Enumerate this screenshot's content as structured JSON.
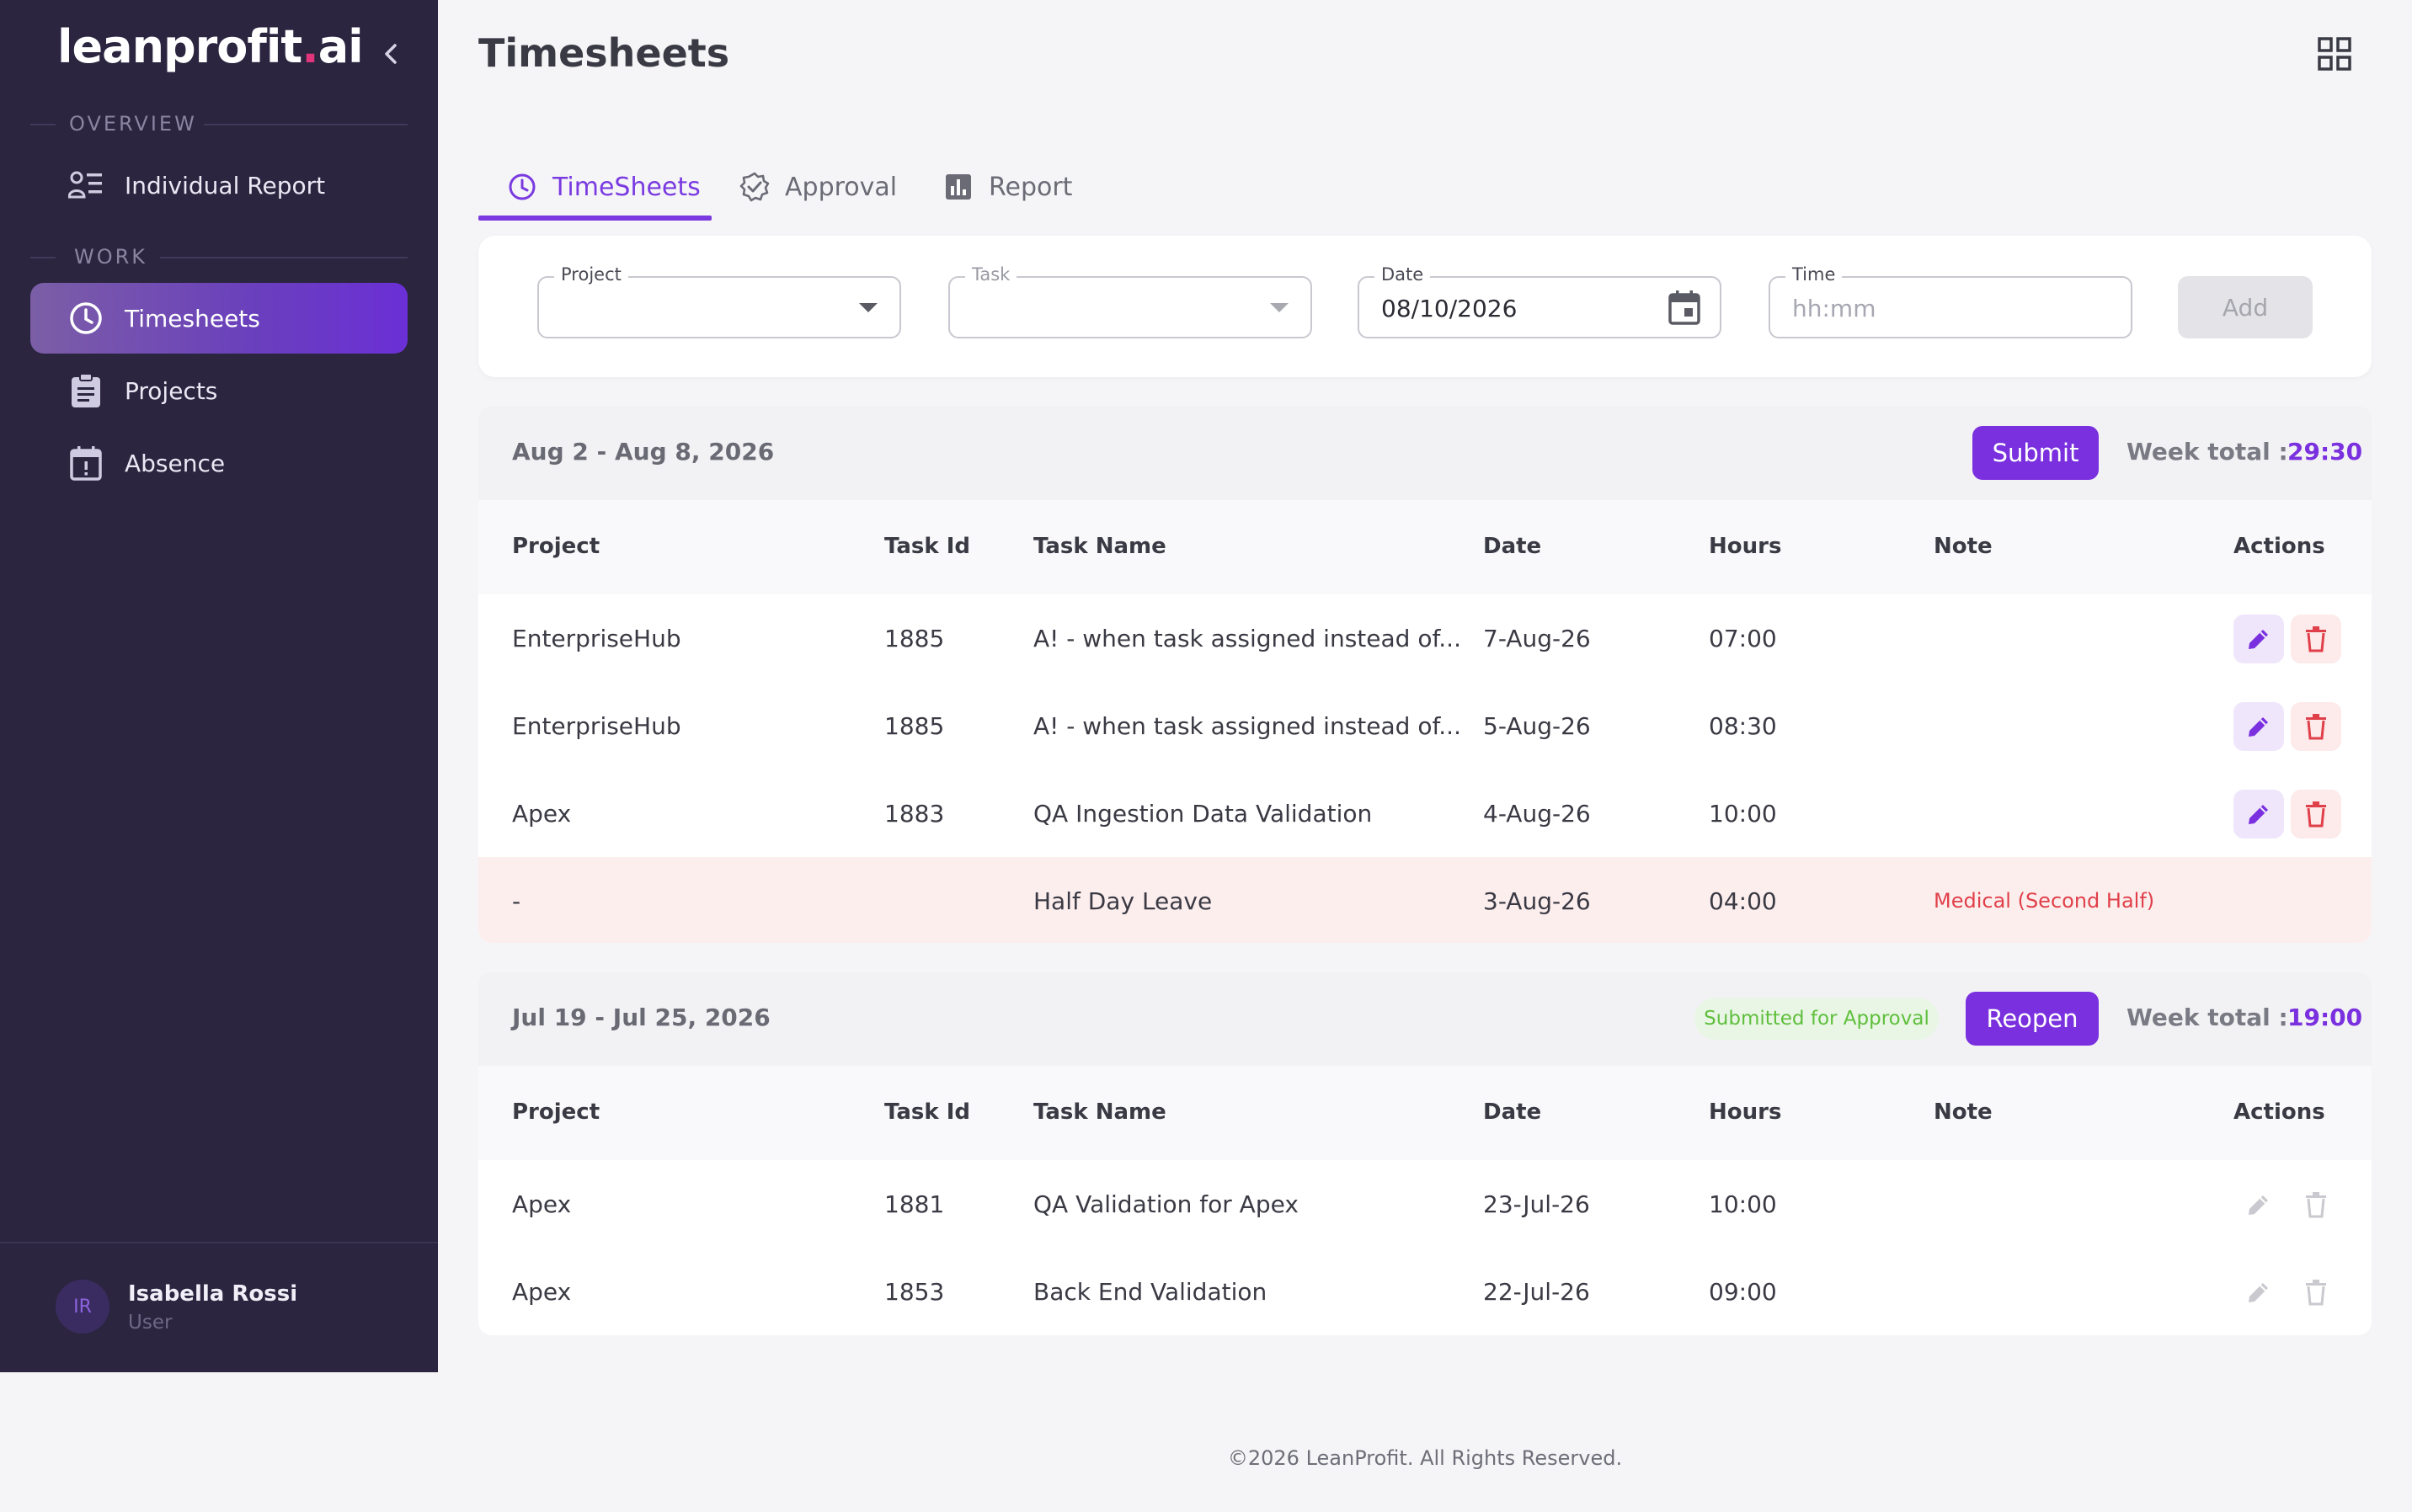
{
  "app": {
    "logo_main": "leanprofit",
    "logo_dot": ".",
    "logo_tail": "ai"
  },
  "sidebar": {
    "overview_label": "OVERVIEW",
    "work_label": "WORK",
    "items": [
      {
        "label": "Individual Report",
        "icon": "report-person-icon"
      },
      {
        "label": "Timesheets",
        "icon": "clock-icon",
        "active": true
      },
      {
        "label": "Projects",
        "icon": "clipboard-icon"
      },
      {
        "label": "Absence",
        "icon": "calendar-alert-icon"
      }
    ],
    "user": {
      "initials": "IR",
      "name": "Isabella Rossi",
      "role": "User"
    }
  },
  "header": {
    "title": "Timesheets"
  },
  "tabs": [
    {
      "label": "TimeSheets",
      "icon": "clock-icon",
      "active": true
    },
    {
      "label": "Approval",
      "icon": "verified-badge-icon"
    },
    {
      "label": "Report",
      "icon": "bar-chart-icon"
    }
  ],
  "entry_form": {
    "project": {
      "label": "Project",
      "value": ""
    },
    "task": {
      "label": "Task",
      "value": ""
    },
    "date": {
      "label": "Date",
      "value": "08/10/2026"
    },
    "time": {
      "label": "Time",
      "placeholder": "hh:mm"
    },
    "add_label": "Add"
  },
  "columns": [
    "Project",
    "Task Id",
    "Task Name",
    "Date",
    "Hours",
    "Note",
    "Actions"
  ],
  "weeks": [
    {
      "range": "Aug 2 - Aug 8, 2026",
      "action_label": "Submit",
      "week_total_label": "Week total :",
      "week_total": "29:30",
      "rows": [
        {
          "project": "EnterpriseHub",
          "task_id": "1885",
          "task_name": "A! - when task assigned instead of...",
          "date": "7-Aug-26",
          "hours": "07:00",
          "note": ""
        },
        {
          "project": "EnterpriseHub",
          "task_id": "1885",
          "task_name": "A! - when task assigned instead of...",
          "date": "5-Aug-26",
          "hours": "08:30",
          "note": ""
        },
        {
          "project": "Apex",
          "task_id": "1883",
          "task_name": "QA Ingestion Data Validation",
          "date": "4-Aug-26",
          "hours": "10:00",
          "note": ""
        },
        {
          "project": "-",
          "task_id": "",
          "task_name": "Half Day Leave",
          "date": "3-Aug-26",
          "hours": "04:00",
          "note": "Medical (Second Half)"
        }
      ]
    },
    {
      "range": "Jul 19 - Jul 25, 2026",
      "status": "Submitted for Approval",
      "action_label": "Reopen",
      "week_total_label": "Week total :",
      "week_total": "19:00",
      "rows": [
        {
          "project": "Apex",
          "task_id": "1881",
          "task_name": "QA Validation for Apex",
          "date": "23-Jul-26",
          "hours": "10:00",
          "note": ""
        },
        {
          "project": "Apex",
          "task_id": "1853",
          "task_name": "Back End Validation",
          "date": "22-Jul-26",
          "hours": "09:00",
          "note": ""
        }
      ]
    }
  ],
  "footer": {
    "text": "©2026 LeanProfit. All Rights Reserved."
  },
  "colors": {
    "accent": "#7a30de",
    "sidebar": "#2b2540",
    "danger": "#e0404a",
    "success": "#5fbf3d"
  }
}
